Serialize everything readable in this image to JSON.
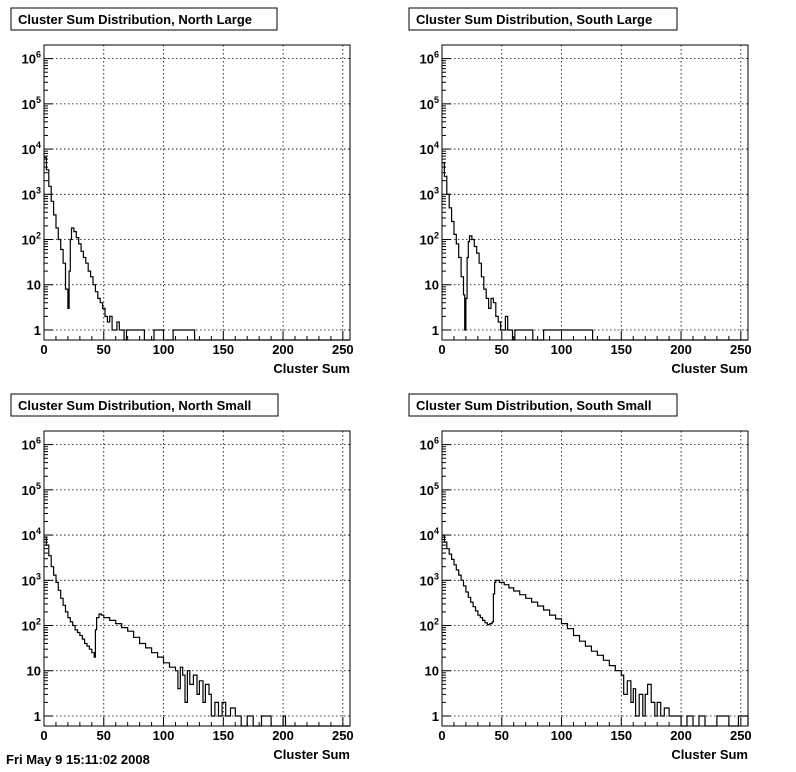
{
  "footer_text": "Fri May 9 15:11:02 2008",
  "chart_data": [
    {
      "type": "histogram",
      "title": "Cluster Sum Distribution, North Large",
      "xlabel": "Cluster Sum",
      "ylabel": "",
      "xlim": [
        0,
        256
      ],
      "ylim": [
        0.6,
        2000000
      ],
      "yscale": "log",
      "grid": true,
      "x_ticks": [
        0,
        50,
        100,
        150,
        200,
        250
      ],
      "y_ticks": [
        1,
        10,
        100,
        1000,
        10000,
        100000,
        1000000
      ],
      "points": [
        [
          0,
          6500
        ],
        [
          2,
          3500
        ],
        [
          4,
          1500
        ],
        [
          6,
          700
        ],
        [
          8,
          350
        ],
        [
          10,
          180
        ],
        [
          12,
          100
        ],
        [
          14,
          60
        ],
        [
          16,
          30
        ],
        [
          18,
          8
        ],
        [
          20,
          3
        ],
        [
          21,
          20
        ],
        [
          22,
          100
        ],
        [
          23,
          180
        ],
        [
          25,
          150
        ],
        [
          27,
          110
        ],
        [
          29,
          80
        ],
        [
          31,
          55
        ],
        [
          33,
          40
        ],
        [
          35,
          30
        ],
        [
          37,
          20
        ],
        [
          39,
          15
        ],
        [
          41,
          10
        ],
        [
          43,
          7
        ],
        [
          45,
          5
        ],
        [
          47,
          4
        ],
        [
          49,
          3
        ],
        [
          51,
          2
        ],
        [
          53,
          1.5
        ],
        [
          55,
          2
        ],
        [
          57,
          1
        ],
        [
          59,
          1
        ],
        [
          61,
          1.5
        ],
        [
          63,
          1
        ],
        [
          65,
          1
        ],
        [
          67,
          0.6
        ],
        [
          69,
          1
        ],
        [
          71,
          1
        ],
        [
          75,
          1
        ],
        [
          79,
          1
        ],
        [
          84,
          0.6
        ],
        [
          92,
          1
        ],
        [
          100,
          0.6
        ],
        [
          108,
          1
        ],
        [
          118,
          1
        ],
        [
          126,
          0.6
        ],
        [
          256,
          0.6
        ]
      ]
    },
    {
      "type": "histogram",
      "title": "Cluster Sum Distribution, South Large",
      "xlabel": "Cluster Sum",
      "ylabel": "",
      "xlim": [
        0,
        256
      ],
      "ylim": [
        0.6,
        2000000
      ],
      "yscale": "log",
      "grid": true,
      "x_ticks": [
        0,
        50,
        100,
        150,
        200,
        250
      ],
      "y_ticks": [
        1,
        10,
        100,
        1000,
        10000,
        100000,
        1000000
      ],
      "points": [
        [
          0,
          5000
        ],
        [
          2,
          2500
        ],
        [
          4,
          1000
        ],
        [
          6,
          500
        ],
        [
          8,
          250
        ],
        [
          10,
          130
        ],
        [
          12,
          80
        ],
        [
          14,
          40
        ],
        [
          16,
          15
        ],
        [
          18,
          6
        ],
        [
          19,
          1
        ],
        [
          20,
          5
        ],
        [
          21,
          40
        ],
        [
          22,
          90
        ],
        [
          23,
          120
        ],
        [
          25,
          100
        ],
        [
          27,
          70
        ],
        [
          29,
          50
        ],
        [
          31,
          30
        ],
        [
          33,
          15
        ],
        [
          35,
          8
        ],
        [
          37,
          5
        ],
        [
          39,
          3
        ],
        [
          41,
          5
        ],
        [
          43,
          4
        ],
        [
          45,
          2
        ],
        [
          47,
          1.5
        ],
        [
          49,
          1
        ],
        [
          51,
          1
        ],
        [
          53,
          2
        ],
        [
          55,
          1
        ],
        [
          57,
          1
        ],
        [
          59,
          0.6
        ],
        [
          61,
          1
        ],
        [
          63,
          1
        ],
        [
          67,
          1
        ],
        [
          71,
          1
        ],
        [
          76,
          0.6
        ],
        [
          85,
          1
        ],
        [
          92,
          1
        ],
        [
          102,
          1
        ],
        [
          110,
          1
        ],
        [
          120,
          1
        ],
        [
          126,
          0.6
        ],
        [
          256,
          0.6
        ]
      ]
    },
    {
      "type": "histogram",
      "title": "Cluster Sum Distribution, North Small",
      "xlabel": "Cluster Sum",
      "ylabel": "",
      "xlim": [
        0,
        256
      ],
      "ylim": [
        0.6,
        2000000
      ],
      "yscale": "log",
      "grid": true,
      "x_ticks": [
        0,
        50,
        100,
        150,
        200,
        250
      ],
      "y_ticks": [
        1,
        10,
        100,
        1000,
        10000,
        100000,
        1000000
      ],
      "points": [
        [
          0,
          9000
        ],
        [
          2,
          6000
        ],
        [
          4,
          3500
        ],
        [
          6,
          2000
        ],
        [
          8,
          1300
        ],
        [
          10,
          900
        ],
        [
          12,
          600
        ],
        [
          14,
          400
        ],
        [
          16,
          280
        ],
        [
          18,
          200
        ],
        [
          20,
          150
        ],
        [
          22,
          120
        ],
        [
          24,
          100
        ],
        [
          26,
          80
        ],
        [
          28,
          70
        ],
        [
          30,
          60
        ],
        [
          32,
          50
        ],
        [
          34,
          40
        ],
        [
          36,
          35
        ],
        [
          38,
          30
        ],
        [
          40,
          25
        ],
        [
          42,
          20
        ],
        [
          43,
          80
        ],
        [
          44,
          150
        ],
        [
          46,
          180
        ],
        [
          48,
          170
        ],
        [
          50,
          150
        ],
        [
          55,
          130
        ],
        [
          60,
          110
        ],
        [
          65,
          90
        ],
        [
          70,
          75
        ],
        [
          75,
          55
        ],
        [
          80,
          40
        ],
        [
          85,
          32
        ],
        [
          90,
          25
        ],
        [
          95,
          20
        ],
        [
          100,
          15
        ],
        [
          105,
          12
        ],
        [
          110,
          10
        ],
        [
          112,
          4
        ],
        [
          114,
          12
        ],
        [
          116,
          8
        ],
        [
          118,
          2
        ],
        [
          120,
          10
        ],
        [
          122,
          5
        ],
        [
          125,
          8
        ],
        [
          128,
          3
        ],
        [
          130,
          6
        ],
        [
          133,
          2
        ],
        [
          135,
          5
        ],
        [
          138,
          3
        ],
        [
          140,
          1
        ],
        [
          143,
          2
        ],
        [
          146,
          1
        ],
        [
          149,
          2
        ],
        [
          152,
          1
        ],
        [
          156,
          1.5
        ],
        [
          160,
          1
        ],
        [
          165,
          0.6
        ],
        [
          170,
          1
        ],
        [
          175,
          0.6
        ],
        [
          182,
          1
        ],
        [
          190,
          0.6
        ],
        [
          200,
          1
        ],
        [
          202,
          0.6
        ],
        [
          256,
          0.6
        ]
      ]
    },
    {
      "type": "histogram",
      "title": "Cluster Sum Distribution, South Small",
      "xlabel": "Cluster Sum",
      "ylabel": "",
      "xlim": [
        0,
        256
      ],
      "ylim": [
        0.6,
        2000000
      ],
      "yscale": "log",
      "grid": true,
      "x_ticks": [
        0,
        50,
        100,
        150,
        200,
        250
      ],
      "y_ticks": [
        1,
        10,
        100,
        1000,
        10000,
        100000,
        1000000
      ],
      "points": [
        [
          0,
          10000
        ],
        [
          2,
          7000
        ],
        [
          4,
          5000
        ],
        [
          6,
          3800
        ],
        [
          8,
          2900
        ],
        [
          10,
          2200
        ],
        [
          12,
          1700
        ],
        [
          14,
          1300
        ],
        [
          16,
          1000
        ],
        [
          18,
          750
        ],
        [
          20,
          550
        ],
        [
          22,
          420
        ],
        [
          24,
          330
        ],
        [
          26,
          260
        ],
        [
          28,
          210
        ],
        [
          30,
          170
        ],
        [
          32,
          150
        ],
        [
          34,
          130
        ],
        [
          36,
          115
        ],
        [
          38,
          105
        ],
        [
          40,
          110
        ],
        [
          42,
          120
        ],
        [
          43,
          500
        ],
        [
          44,
          900
        ],
        [
          45,
          1000
        ],
        [
          48,
          900
        ],
        [
          52,
          800
        ],
        [
          56,
          680
        ],
        [
          60,
          580
        ],
        [
          65,
          480
        ],
        [
          70,
          400
        ],
        [
          75,
          330
        ],
        [
          80,
          270
        ],
        [
          85,
          220
        ],
        [
          90,
          170
        ],
        [
          95,
          140
        ],
        [
          100,
          110
        ],
        [
          105,
          85
        ],
        [
          110,
          60
        ],
        [
          115,
          45
        ],
        [
          120,
          35
        ],
        [
          125,
          27
        ],
        [
          130,
          22
        ],
        [
          135,
          17
        ],
        [
          140,
          13
        ],
        [
          145,
          10
        ],
        [
          150,
          8
        ],
        [
          152,
          3
        ],
        [
          155,
          6
        ],
        [
          158,
          2
        ],
        [
          160,
          4
        ],
        [
          162,
          1
        ],
        [
          165,
          3
        ],
        [
          168,
          1
        ],
        [
          170,
          3
        ],
        [
          172,
          5
        ],
        [
          175,
          2
        ],
        [
          178,
          1
        ],
        [
          180,
          2
        ],
        [
          183,
          1
        ],
        [
          186,
          1.5
        ],
        [
          190,
          1
        ],
        [
          195,
          1
        ],
        [
          200,
          0.6
        ],
        [
          205,
          1
        ],
        [
          210,
          0.6
        ],
        [
          215,
          1
        ],
        [
          220,
          0.6
        ],
        [
          230,
          1
        ],
        [
          240,
          0.6
        ],
        [
          248,
          1
        ],
        [
          256,
          0.6
        ]
      ]
    }
  ]
}
